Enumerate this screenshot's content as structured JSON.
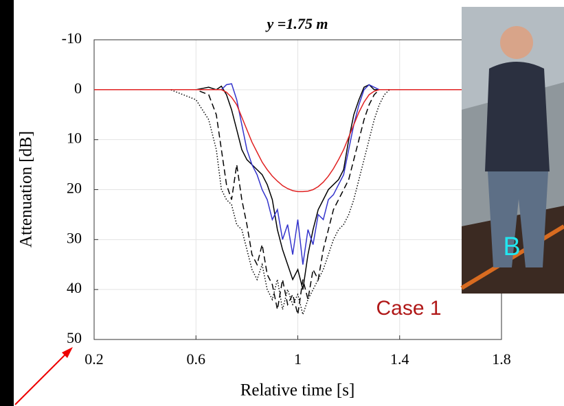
{
  "chart_data": {
    "type": "line",
    "title": "y =1.75 m",
    "x_label": "Relative time [s]",
    "y_label": "Attenuation [dB]",
    "xlim": [
      0.2,
      1.8
    ],
    "xticks": [
      0.2,
      0.6,
      1,
      1.4,
      1.8
    ],
    "ylim": [
      -10,
      50
    ],
    "yticks": [
      -10,
      0,
      10,
      20,
      30,
      40,
      50
    ],
    "y_reversed": true,
    "grid": true,
    "x": [
      0.2,
      0.3,
      0.4,
      0.5,
      0.55,
      0.6,
      0.65,
      0.68,
      0.7,
      0.72,
      0.74,
      0.76,
      0.78,
      0.8,
      0.82,
      0.84,
      0.86,
      0.88,
      0.9,
      0.92,
      0.94,
      0.96,
      0.98,
      1.0,
      1.02,
      1.04,
      1.06,
      1.08,
      1.1,
      1.12,
      1.14,
      1.16,
      1.18,
      1.2,
      1.22,
      1.24,
      1.26,
      1.28,
      1.3,
      1.32,
      1.34,
      1.36,
      1.4,
      1.5,
      1.6,
      1.7,
      1.8
    ],
    "series": [
      {
        "color": "#000000",
        "line_style": "dotted",
        "values": [
          0,
          0,
          0,
          0,
          1,
          2,
          6,
          12,
          20,
          22,
          23,
          27,
          28,
          32,
          36,
          38,
          35,
          40,
          42,
          38,
          44,
          40,
          43,
          41,
          45,
          42,
          40,
          38,
          36,
          33,
          30,
          28,
          27,
          25,
          22,
          18,
          14,
          10,
          6,
          3,
          1,
          0,
          0,
          0,
          0,
          0,
          0
        ]
      },
      {
        "color": "#000000",
        "line_style": "dashed",
        "values": [
          0,
          0,
          0,
          0,
          0,
          0,
          1,
          5,
          12,
          19,
          22,
          15,
          22,
          27,
          33,
          35,
          31,
          37,
          39,
          44,
          38,
          43,
          41,
          45,
          38,
          42,
          36,
          38,
          32,
          28,
          24,
          22,
          20,
          18,
          14,
          10,
          6,
          3,
          1,
          0,
          0,
          0,
          0,
          0,
          0,
          0,
          0
        ]
      },
      {
        "color": "#000000",
        "line_style": "solid",
        "values": [
          0,
          0,
          0,
          0,
          0,
          0,
          -0.5,
          0,
          -0.7,
          1,
          4,
          8,
          12,
          14,
          15,
          16,
          17,
          19,
          22,
          28,
          32,
          35,
          38,
          36,
          40,
          33,
          28,
          24,
          22,
          20,
          19,
          18,
          16,
          10,
          5,
          2,
          -0.5,
          -1,
          0,
          0,
          0,
          0,
          0,
          0,
          0,
          0,
          0
        ]
      },
      {
        "color": "#3333cc",
        "line_style": "solid",
        "values": [
          0,
          0,
          0,
          0,
          0,
          0,
          0,
          0,
          0,
          -1,
          -1.2,
          2,
          7,
          12,
          15,
          17,
          20,
          22,
          26,
          24,
          30,
          27,
          33,
          26,
          35,
          28,
          31,
          25,
          26,
          22,
          21,
          19,
          17,
          12,
          7,
          3,
          0,
          -1,
          -0.5,
          0,
          0,
          0,
          0,
          0,
          0,
          0,
          0
        ]
      },
      {
        "color": "#e02020",
        "line_style": "solid",
        "values": [
          0,
          0,
          0,
          0,
          0,
          0,
          0,
          0,
          0,
          0.5,
          1.5,
          3,
          5.5,
          8,
          10.5,
          12.5,
          14.5,
          16,
          17.3,
          18.3,
          19.2,
          19.8,
          20.2,
          20.4,
          20.4,
          20.3,
          20,
          19.4,
          18.5,
          17.3,
          15.8,
          14,
          12,
          9.5,
          7,
          4.5,
          2.5,
          1,
          0.3,
          0,
          0,
          0,
          0,
          0,
          0,
          0,
          0
        ]
      }
    ],
    "annotations": [
      "Case 1",
      "B"
    ]
  }
}
